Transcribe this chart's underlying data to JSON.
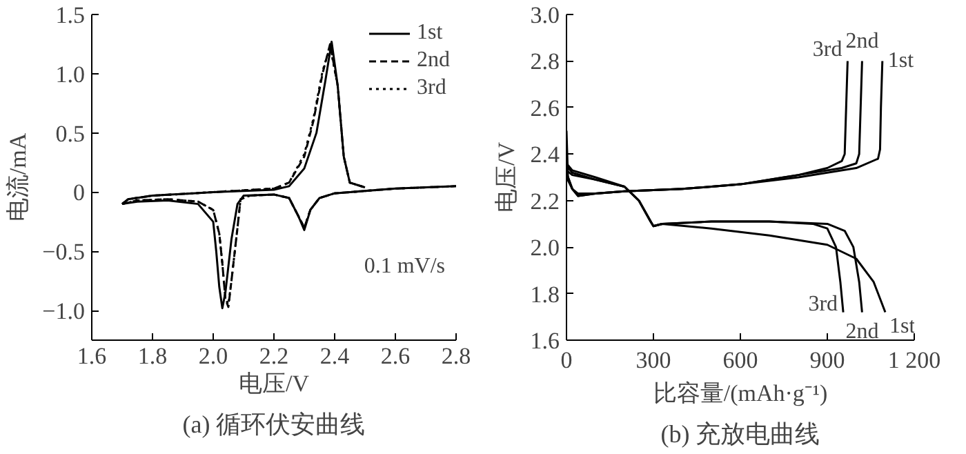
{
  "chart_data": [
    {
      "type": "line",
      "title": "(a) 循环伏安曲线",
      "xlabel": "电压/V",
      "ylabel": "电流/mA",
      "xlim": [
        1.6,
        2.8
      ],
      "ylim": [
        -1.25,
        1.5
      ],
      "xticks": [
        1.6,
        1.8,
        {
          "value": 2.0,
          "label": "2.0"
        },
        2.2,
        2.4,
        2.6,
        2.8
      ],
      "yticks": [
        {
          "value": -1.0,
          "label": "−1.0"
        },
        {
          "value": -0.5,
          "label": "−0.5"
        },
        0,
        0.5,
        {
          "value": 1.0,
          "label": "1.0"
        },
        1.5
      ],
      "grid": false,
      "legend": "top right",
      "marker": "none",
      "annotations": [
        "0.1 mV/s"
      ],
      "series": [
        {
          "name": "1st",
          "color": "#000000",
          "line_style": "solid",
          "x": [
            1.7,
            1.75,
            1.85,
            1.95,
            2.0,
            2.01,
            2.02,
            2.03,
            2.04,
            2.06,
            2.08,
            2.1,
            2.2,
            2.25,
            2.28,
            2.3,
            2.32,
            2.35,
            2.4,
            2.45,
            2.6,
            2.8
          ],
          "values": [
            -0.1,
            -0.08,
            -0.07,
            -0.1,
            -0.25,
            -0.5,
            -0.8,
            -0.98,
            -0.85,
            -0.4,
            -0.1,
            -0.03,
            -0.02,
            -0.05,
            -0.2,
            -0.32,
            -0.15,
            -0.05,
            -0.01,
            0.0,
            0.03,
            0.05
          ]
        },
        {
          "color": "#000000",
          "line_style": "solid",
          "x": [
            1.7,
            1.72,
            1.8,
            2.0,
            2.2,
            2.25,
            2.3,
            2.34,
            2.37,
            2.39,
            2.41,
            2.43,
            2.45,
            2.5
          ],
          "values": [
            -0.1,
            -0.06,
            -0.03,
            0.0,
            0.02,
            0.05,
            0.2,
            0.5,
            0.95,
            1.27,
            0.9,
            0.3,
            0.08,
            0.04
          ]
        },
        {
          "name": "2nd",
          "color": "#000000",
          "line_style": "dashed",
          "x": [
            1.7,
            1.75,
            1.85,
            1.95,
            2.0,
            2.02,
            2.03,
            2.04,
            2.05,
            2.06,
            2.08,
            2.09,
            2.12,
            2.2,
            2.25,
            2.28,
            2.3,
            2.32,
            2.35,
            2.4,
            2.45,
            2.6,
            2.8
          ],
          "values": [
            -0.1,
            -0.07,
            -0.06,
            -0.08,
            -0.15,
            -0.35,
            -0.6,
            -0.9,
            -0.97,
            -0.75,
            -0.3,
            -0.06,
            -0.03,
            -0.02,
            -0.05,
            -0.2,
            -0.3,
            -0.15,
            -0.05,
            -0.01,
            0.0,
            0.03,
            0.05
          ]
        },
        {
          "color": "#000000",
          "line_style": "dashed",
          "x": [
            1.7,
            1.72,
            1.8,
            2.0,
            2.2,
            2.25,
            2.3,
            2.33,
            2.36,
            2.385,
            2.41,
            2.43,
            2.45,
            2.5
          ],
          "values": [
            -0.1,
            -0.06,
            -0.03,
            0.0,
            0.03,
            0.08,
            0.3,
            0.6,
            1.0,
            1.25,
            0.9,
            0.3,
            0.08,
            0.04
          ]
        },
        {
          "name": "3rd",
          "color": "#000000",
          "line_style": "dotted",
          "x": [
            1.7,
            1.75,
            1.85,
            1.95,
            2.0,
            2.02,
            2.03,
            2.04,
            2.05,
            2.06,
            2.08,
            2.09,
            2.12,
            2.2,
            2.25,
            2.28,
            2.3,
            2.32,
            2.35,
            2.4,
            2.45,
            2.6,
            2.8
          ],
          "values": [
            -0.1,
            -0.07,
            -0.06,
            -0.08,
            -0.15,
            -0.35,
            -0.6,
            -0.9,
            -0.95,
            -0.75,
            -0.3,
            -0.06,
            -0.03,
            -0.02,
            -0.05,
            -0.2,
            -0.3,
            -0.15,
            -0.05,
            -0.01,
            0.0,
            0.03,
            0.05
          ]
        },
        {
          "color": "#000000",
          "line_style": "dotted",
          "x": [
            1.7,
            1.72,
            1.8,
            2.0,
            2.2,
            2.25,
            2.3,
            2.33,
            2.36,
            2.385,
            2.41,
            2.43,
            2.45,
            2.5
          ],
          "values": [
            -0.1,
            -0.06,
            -0.03,
            0.0,
            0.03,
            0.08,
            0.32,
            0.62,
            1.02,
            1.23,
            0.9,
            0.3,
            0.08,
            0.04
          ]
        }
      ]
    },
    {
      "type": "line",
      "title": "(b) 充放电曲线",
      "xlabel": "比容量/(mAh·g⁻¹)",
      "ylabel": "电压/V",
      "xlim": [
        0,
        1200
      ],
      "ylim": [
        1.6,
        3.0
      ],
      "xticks": [
        0,
        300,
        600,
        900,
        {
          "value": 1200,
          "label": "1 200"
        }
      ],
      "yticks": [
        1.6,
        1.8,
        {
          "value": 2.0,
          "label": "2.0"
        },
        2.2,
        2.4,
        2.6,
        2.8,
        {
          "value": 3.0,
          "label": "3.0"
        }
      ],
      "grid": false,
      "legend": false,
      "marker": "none",
      "series": [
        {
          "name": "3rd",
          "color": "#000000",
          "x": [
            0,
            20,
            40,
            100,
            200,
            400,
            600,
            800,
            900,
            950,
            960,
            965,
            970
          ],
          "values": [
            2.32,
            2.25,
            2.22,
            2.23,
            2.24,
            2.25,
            2.27,
            2.31,
            2.34,
            2.37,
            2.4,
            2.6,
            2.8
          ]
        },
        {
          "name": "2nd",
          "color": "#000000",
          "x": [
            0,
            20,
            40,
            100,
            200,
            400,
            600,
            800,
            950,
            1000,
            1010,
            1015,
            1020
          ],
          "values": [
            2.3,
            2.25,
            2.22,
            2.23,
            2.24,
            2.25,
            2.27,
            2.31,
            2.34,
            2.36,
            2.4,
            2.6,
            2.8
          ]
        },
        {
          "name": "1st",
          "color": "#000000",
          "x": [
            0,
            5,
            20,
            40,
            100,
            200,
            400,
            600,
            800,
            1000,
            1075,
            1082,
            1085,
            1090
          ],
          "values": [
            2.5,
            2.3,
            2.25,
            2.23,
            2.23,
            2.24,
            2.25,
            2.27,
            2.3,
            2.34,
            2.38,
            2.42,
            2.6,
            2.8
          ]
        },
        {
          "name": "3rd",
          "color": "#000000",
          "x": [
            0,
            20,
            100,
            200,
            250,
            290,
            300,
            330,
            500,
            700,
            850,
            900,
            930,
            945,
            955
          ],
          "values": [
            2.36,
            2.33,
            2.3,
            2.26,
            2.2,
            2.11,
            2.09,
            2.1,
            2.11,
            2.11,
            2.1,
            2.08,
            2.0,
            1.85,
            1.72
          ]
        },
        {
          "name": "2nd",
          "color": "#000000",
          "x": [
            0,
            20,
            100,
            200,
            250,
            290,
            300,
            330,
            500,
            700,
            900,
            960,
            990,
            1010,
            1020
          ],
          "values": [
            2.35,
            2.32,
            2.29,
            2.26,
            2.2,
            2.11,
            2.09,
            2.1,
            2.11,
            2.11,
            2.1,
            2.07,
            2.0,
            1.85,
            1.72
          ]
        },
        {
          "name": "1st",
          "color": "#000000",
          "x": [
            0,
            20,
            100,
            200,
            250,
            300,
            330,
            500,
            700,
            900,
            1000,
            1060,
            1100
          ],
          "values": [
            2.33,
            2.31,
            2.29,
            2.26,
            2.2,
            2.09,
            2.1,
            2.08,
            2.05,
            2.01,
            1.95,
            1.85,
            1.72
          ]
        }
      ]
    }
  ]
}
